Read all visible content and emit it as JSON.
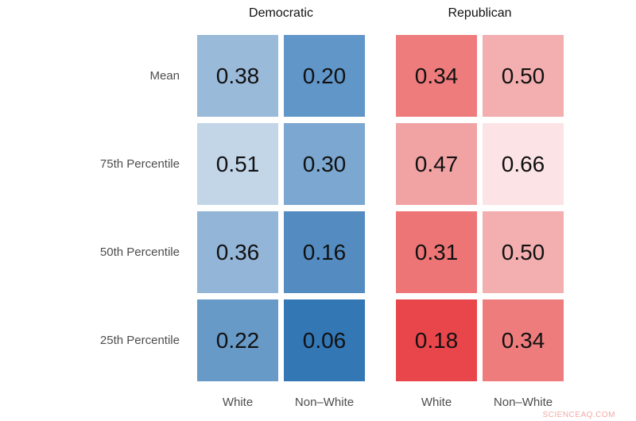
{
  "watermark": "SCIENCEAQ.COM",
  "chart_data": {
    "type": "heatmap",
    "group_headers": [
      {
        "label": "Democratic",
        "accent_color": "#3377b5"
      },
      {
        "label": "Republican",
        "accent_color": "#e9464b"
      }
    ],
    "col_labels": [
      "White",
      "Non–White",
      "White",
      "Non–White"
    ],
    "row_labels": [
      "Mean",
      "75th Percentile",
      "50th Percentile",
      "25th Percentile"
    ],
    "value_note": "lower value = darker fill; Democratic columns use blues, Republican columns use reds",
    "rows": [
      {
        "label": "Mean",
        "cells": [
          {
            "column": "Democratic White",
            "value": "0.38",
            "color": "#9abad9"
          },
          {
            "column": "Democratic Non–White",
            "value": "0.20",
            "color": "#6196c9"
          },
          {
            "column": "Republican White",
            "value": "0.34",
            "color": "#ef7c7d"
          },
          {
            "column": "Republican Non–White",
            "value": "0.50",
            "color": "#f3aeb0"
          }
        ]
      },
      {
        "label": "75th Percentile",
        "cells": [
          {
            "column": "Democratic White",
            "value": "0.51",
            "color": "#c3d6e8"
          },
          {
            "column": "Democratic Non–White",
            "value": "0.30",
            "color": "#7ba7d0"
          },
          {
            "column": "Republican White",
            "value": "0.47",
            "color": "#f1a3a4"
          },
          {
            "column": "Republican Non–White",
            "value": "0.66",
            "color": "#fce3e5"
          }
        ]
      },
      {
        "label": "50th Percentile",
        "cells": [
          {
            "column": "Democratic White",
            "value": "0.36",
            "color": "#93b5d7"
          },
          {
            "column": "Democratic Non–White",
            "value": "0.16",
            "color": "#548cc1"
          },
          {
            "column": "Republican White",
            "value": "0.31",
            "color": "#ed7576"
          },
          {
            "column": "Republican Non–White",
            "value": "0.50",
            "color": "#f3aeb0"
          }
        ]
      },
      {
        "label": "25th Percentile",
        "cells": [
          {
            "column": "Democratic White",
            "value": "0.22",
            "color": "#689ac8"
          },
          {
            "column": "Democratic Non–White",
            "value": "0.06",
            "color": "#3377b5"
          },
          {
            "column": "Republican White",
            "value": "0.18",
            "color": "#e9464b"
          },
          {
            "column": "Republican Non–White",
            "value": "0.34",
            "color": "#ef7c7d"
          }
        ]
      }
    ]
  }
}
